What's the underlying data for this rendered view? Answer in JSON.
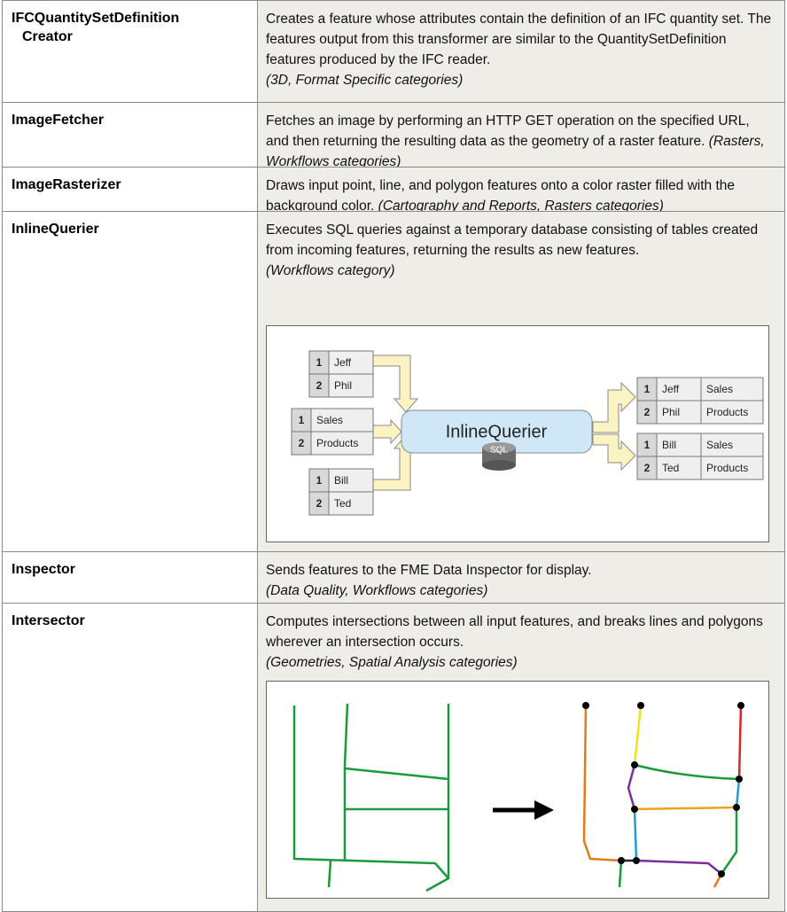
{
  "table": {
    "rows": [
      {
        "name": "IFCQuantitySetDefinition",
        "name_continued": "Creator",
        "description": "Creates a feature whose attributes contain the definition of an IFC quantity set. The features output from this transformer are similar to the QuantitySetDefinition features produced by the IFC reader.",
        "categories": "(3D, Format Specific categories)"
      },
      {
        "name": "ImageFetcher",
        "description": "Fetches an image by performing an HTTP GET operation on the specified URL, and then returning the resulting data as the geometry of a raster feature.",
        "categories": "(Rasters, Workflows categories)"
      },
      {
        "name": "ImageRasterizer",
        "description": "Draws input point, line, and polygon features onto a color raster filled with the background color.",
        "categories": "(Cartography and Reports, Rasters categories)"
      },
      {
        "name": "InlineQuerier",
        "description": "Executes SQL queries against a temporary database consisting of tables created from incoming features, returning the results as new features.",
        "categories": "(Workflows category)"
      },
      {
        "name": "Inspector",
        "description": "Sends features to the FME Data Inspector for display.",
        "categories": "(Data Quality, Workflows categories)"
      },
      {
        "name": "Intersector",
        "description": "Computes intersections between all input features, and breaks lines and polygons wherever an intersection occurs.",
        "categories": "(Geometries, Spatial Analysis categories)"
      }
    ]
  },
  "inline_querier_diagram": {
    "title": "InlineQuerier",
    "database": "SQL",
    "inputs": [
      [
        [
          "1",
          "Jeff"
        ],
        [
          "2",
          "Phil"
        ]
      ],
      [
        [
          "1",
          "Sales"
        ],
        [
          "2",
          "Products"
        ]
      ],
      [
        [
          "1",
          "Bill"
        ],
        [
          "2",
          "Ted"
        ]
      ]
    ],
    "outputs": [
      [
        [
          "1",
          "Jeff",
          "Sales"
        ],
        [
          "2",
          "Phil",
          "Products"
        ]
      ],
      [
        [
          "1",
          "Bill",
          "Sales"
        ],
        [
          "2",
          "Ted",
          "Products"
        ]
      ]
    ]
  }
}
